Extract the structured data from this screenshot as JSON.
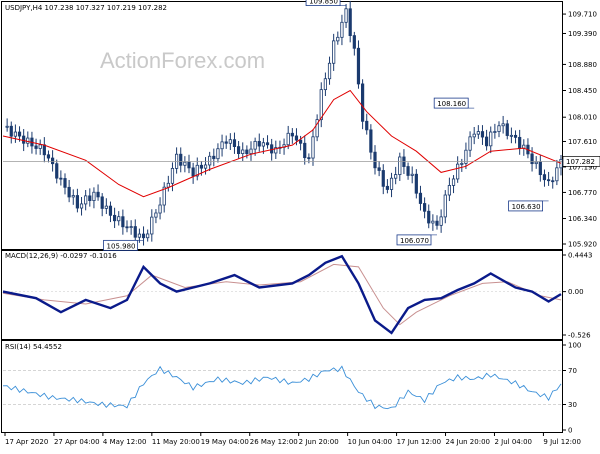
{
  "chart_data": {
    "type": "candlestick",
    "symbol_header": "USDJPY,H4  107.238 107.327 107.219 107.282",
    "watermark": "ActionForex.com",
    "colors": {
      "price": "#1a3a6e",
      "ma": "#e00000",
      "macd": "#0a1a8a",
      "signal": "#c89090",
      "rsi": "#3a8fd8",
      "grid": "#c8c8c8"
    },
    "price_panel": {
      "ylim": [
        105.92,
        109.81
      ],
      "ticks": [
        "109.710",
        "109.390",
        "108.880",
        "108.450",
        "108.010",
        "107.610",
        "107.190",
        "106.770",
        "106.340",
        "105.920"
      ],
      "current": "107.282",
      "annotations": [
        {
          "label": "109.850",
          "value": 109.85
        },
        {
          "label": "105.980",
          "value": 105.98
        },
        {
          "label": "106.070",
          "value": 106.07
        },
        {
          "label": "108.160",
          "value": 108.16
        },
        {
          "label": "106.630",
          "value": 106.63
        }
      ],
      "close_path": [
        [
          0,
          107.85
        ],
        [
          6,
          107.6
        ],
        [
          10,
          107.45
        ],
        [
          14,
          106.95
        ],
        [
          18,
          106.55
        ],
        [
          22,
          106.75
        ],
        [
          26,
          106.4
        ],
        [
          30,
          106.2
        ],
        [
          34,
          106.0
        ],
        [
          38,
          106.6
        ],
        [
          42,
          107.35
        ],
        [
          46,
          107.1
        ],
        [
          50,
          107.3
        ],
        [
          54,
          107.65
        ],
        [
          58,
          107.4
        ],
        [
          62,
          107.6
        ],
        [
          66,
          107.45
        ],
        [
          70,
          107.75
        ],
        [
          74,
          107.3
        ],
        [
          77,
          108.4
        ],
        [
          80,
          109.2
        ],
        [
          83,
          109.75
        ],
        [
          85,
          109.1
        ],
        [
          87,
          108.0
        ],
        [
          90,
          107.2
        ],
        [
          93,
          106.8
        ],
        [
          96,
          107.3
        ],
        [
          99,
          107.0
        ],
        [
          102,
          106.4
        ],
        [
          105,
          106.2
        ],
        [
          108,
          106.9
        ],
        [
          111,
          107.3
        ],
        [
          114,
          107.8
        ],
        [
          117,
          107.6
        ],
        [
          120,
          107.9
        ],
        [
          123,
          107.7
        ],
        [
          126,
          107.5
        ],
        [
          129,
          107.2
        ],
        [
          132,
          106.9
        ],
        [
          135,
          107.28
        ]
      ],
      "ma_path": [
        [
          0,
          107.7
        ],
        [
          10,
          107.55
        ],
        [
          20,
          107.3
        ],
        [
          28,
          106.9
        ],
        [
          34,
          106.7
        ],
        [
          40,
          106.85
        ],
        [
          50,
          107.15
        ],
        [
          60,
          107.4
        ],
        [
          70,
          107.55
        ],
        [
          75,
          107.8
        ],
        [
          80,
          108.3
        ],
        [
          84,
          108.45
        ],
        [
          88,
          108.1
        ],
        [
          94,
          107.7
        ],
        [
          100,
          107.45
        ],
        [
          106,
          107.1
        ],
        [
          112,
          107.2
        ],
        [
          118,
          107.45
        ],
        [
          126,
          107.5
        ],
        [
          135,
          107.25
        ]
      ]
    },
    "macd_panel": {
      "label": "MACD(12,26,9) -0.0297 -0.1016",
      "ylim": [
        -0.526,
        0.4443
      ],
      "ticks": [
        "0.4443",
        "0.00",
        "-0.526"
      ],
      "macd_path": [
        [
          0,
          0.0
        ],
        [
          8,
          -0.08
        ],
        [
          14,
          -0.25
        ],
        [
          20,
          -0.1
        ],
        [
          26,
          -0.2
        ],
        [
          30,
          -0.1
        ],
        [
          34,
          0.3
        ],
        [
          38,
          0.1
        ],
        [
          42,
          0.0
        ],
        [
          50,
          0.1
        ],
        [
          56,
          0.2
        ],
        [
          62,
          0.05
        ],
        [
          70,
          0.1
        ],
        [
          74,
          0.2
        ],
        [
          78,
          0.35
        ],
        [
          82,
          0.43
        ],
        [
          86,
          0.1
        ],
        [
          90,
          -0.35
        ],
        [
          94,
          -0.5
        ],
        [
          98,
          -0.2
        ],
        [
          102,
          -0.1
        ],
        [
          106,
          -0.08
        ],
        [
          110,
          0.02
        ],
        [
          114,
          0.1
        ],
        [
          118,
          0.22
        ],
        [
          124,
          0.05
        ],
        [
          128,
          0.0
        ],
        [
          132,
          -0.12
        ],
        [
          135,
          -0.03
        ]
      ],
      "signal_path": [
        [
          0,
          -0.02
        ],
        [
          10,
          -0.1
        ],
        [
          20,
          -0.15
        ],
        [
          30,
          -0.05
        ],
        [
          36,
          0.2
        ],
        [
          44,
          0.05
        ],
        [
          54,
          0.12
        ],
        [
          62,
          0.08
        ],
        [
          72,
          0.12
        ],
        [
          80,
          0.33
        ],
        [
          86,
          0.3
        ],
        [
          92,
          -0.2
        ],
        [
          96,
          -0.4
        ],
        [
          100,
          -0.25
        ],
        [
          108,
          -0.05
        ],
        [
          116,
          0.1
        ],
        [
          122,
          0.12
        ],
        [
          130,
          -0.05
        ],
        [
          135,
          -0.1
        ]
      ]
    },
    "rsi_panel": {
      "label": "RSI(14) 54.4552",
      "ylim": [
        0,
        100
      ],
      "ticks": [
        "100",
        "70",
        "30",
        "0"
      ],
      "rsi_path": [
        [
          0,
          52
        ],
        [
          6,
          45
        ],
        [
          12,
          38
        ],
        [
          18,
          35
        ],
        [
          24,
          30
        ],
        [
          30,
          28
        ],
        [
          34,
          55
        ],
        [
          38,
          72
        ],
        [
          42,
          62
        ],
        [
          46,
          50
        ],
        [
          52,
          60
        ],
        [
          58,
          55
        ],
        [
          64,
          62
        ],
        [
          70,
          55
        ],
        [
          74,
          60
        ],
        [
          78,
          70
        ],
        [
          82,
          72
        ],
        [
          86,
          45
        ],
        [
          90,
          28
        ],
        [
          94,
          25
        ],
        [
          98,
          45
        ],
        [
          102,
          35
        ],
        [
          106,
          55
        ],
        [
          110,
          62
        ],
        [
          114,
          60
        ],
        [
          118,
          65
        ],
        [
          124,
          55
        ],
        [
          128,
          45
        ],
        [
          132,
          38
        ],
        [
          135,
          54
        ]
      ]
    },
    "x_labels": [
      "17 Apr 2020",
      "27 Apr 04:00",
      "4 May 12:00",
      "11 May 20:00",
      "19 May 04:00",
      "26 May 12:00",
      "2 Jun 20:00",
      "10 Jun 04:00",
      "17 Jun 12:00",
      "24 Jun 20:00",
      "2 Jul 04:00",
      "9 Jul 12:00"
    ]
  }
}
